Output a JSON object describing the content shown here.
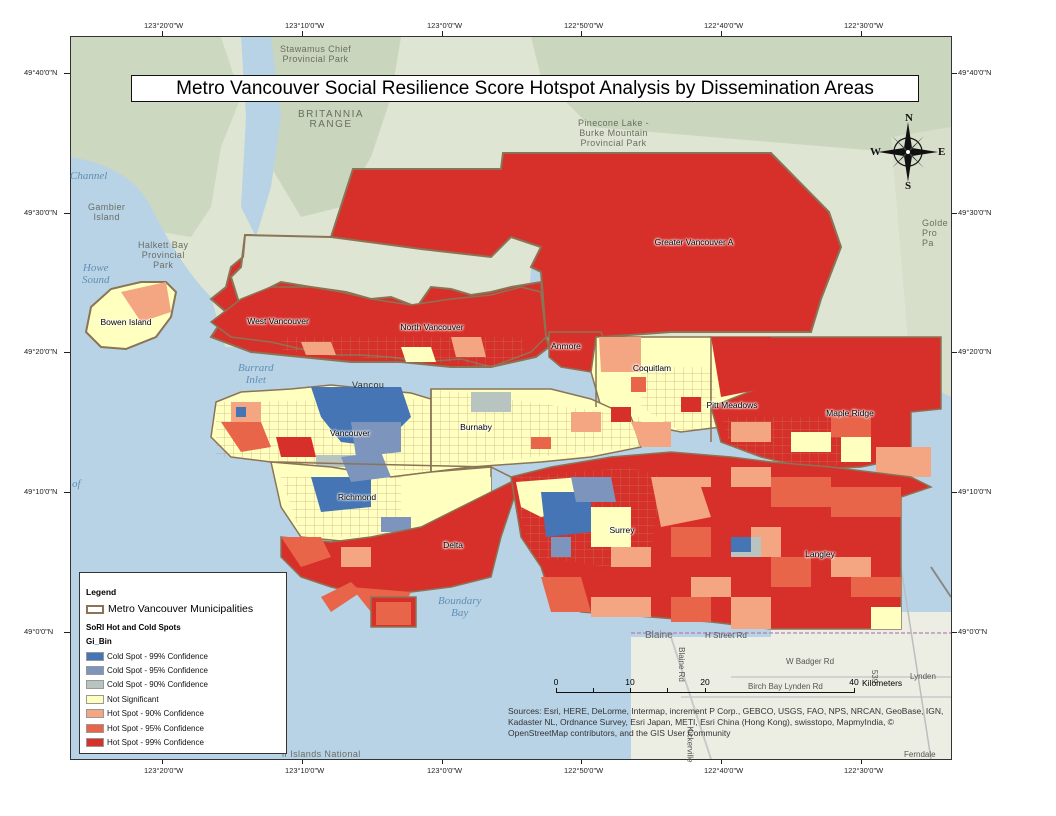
{
  "title": "Metro Vancouver Social Resilience Score Hotspot Analysis by Dissemination Areas",
  "graticule": {
    "top_lon": [
      "123°20'0\"W",
      "123°10'0\"W",
      "123°0'0\"W",
      "122°50'0\"W",
      "122°40'0\"W",
      "122°30'0\"W"
    ],
    "bottom_lon": [
      "123°20'0\"W",
      "123°10'0\"W",
      "123°0'0\"W",
      "122°50'0\"W",
      "122°40'0\"W",
      "122°30'0\"W"
    ],
    "left_lat": [
      "49°40'0\"N",
      "49°30'0\"N",
      "49°20'0\"N",
      "49°10'0\"N",
      "49°0'0\"N"
    ],
    "right_lat": [
      "49°40'0\"N",
      "49°30'0\"N",
      "49°20'0\"N",
      "49°10'0\"N",
      "49°0'0\"N"
    ]
  },
  "municipalities": [
    "Bowen Island",
    "West Vancouver",
    "North Vancouver",
    "Anmore",
    "Coquitlam",
    "Greater Vancouver A",
    "Pitt Meadows",
    "Maple Ridge",
    "Vancouver",
    "Burnaby",
    "Richmond",
    "Delta",
    "Surrey",
    "Langley"
  ],
  "basemap_labels": {
    "stawamus": "Stawamus Chief\nProvincial Park",
    "britannia": "BRITANNIA\nRANGE",
    "pinecone": "Pinecone Lake -\nBurke Mountain\nProvincial Park",
    "gambier": "Gambier\nIsland",
    "halkett": "Halkett Bay\nProvincial\nPark",
    "golden": "Golde\nPro\nPa",
    "islands_national": "lf Islands National",
    "vancouver_base": "Vancou"
  },
  "water_labels": {
    "channel": "Channel",
    "howe_sound": "Howe\nSound",
    "burrard_inlet": "Burrard\nInlet",
    "of": "of",
    "boundary_bay": "Boundary\nBay"
  },
  "road_labels": {
    "h_street": "H Street Rd",
    "badger": "W Badger Rd",
    "birch_bay": "Birch Bay Lynden Rd",
    "blaine": "Blaine",
    "blaine_rd": "Blaine Rd",
    "lynden": "Lynden",
    "ferndale": "Ferndale",
    "kickerville": "Kickerville",
    "line_539": "539"
  },
  "legend": {
    "title": "Legend",
    "boundary_label": "Metro Vancouver Municipalities",
    "layer_title": "SoRI Hot and Cold Spots",
    "field_title": "Gi_Bin",
    "items": [
      {
        "label": "Cold Spot - 99% Confidence",
        "color": "#4575b4"
      },
      {
        "label": "Cold Spot - 95% Confidence",
        "color": "#7d95bd"
      },
      {
        "label": "Cold Spot - 90% Confidence",
        "color": "#b8c4c0"
      },
      {
        "label": "Not Significant",
        "color": "#ffffbf"
      },
      {
        "label": "Hot Spot - 90% Confidence",
        "color": "#f4a582"
      },
      {
        "label": "Hot Spot - 95% Confidence",
        "color": "#e8654a"
      },
      {
        "label": "Hot Spot - 99% Confidence",
        "color": "#d7302a"
      }
    ]
  },
  "scale_bar": {
    "ticks": [
      "0",
      "10",
      "20",
      "40"
    ],
    "unit": "Kilometers"
  },
  "north_arrow": {
    "n": "N",
    "s": "S",
    "e": "E",
    "w": "W"
  },
  "attribution": "Sources: Esri, HERE, DeLorme, Intermap, increment P Corp., GEBCO, USGS, FAO, NPS, NRCAN, GeoBase, IGN, Kadaster NL, Ordnance Survey, Esri Japan, METI, Esri China (Hong Kong), swisstopo, MapmyIndia, © OpenStreetMap contributors, and the GIS User Community",
  "colors": {
    "water": "#b9d3e6",
    "land": "#e6e8dc",
    "terrain": "#cfd8c4",
    "boundary": "#8a7456"
  }
}
